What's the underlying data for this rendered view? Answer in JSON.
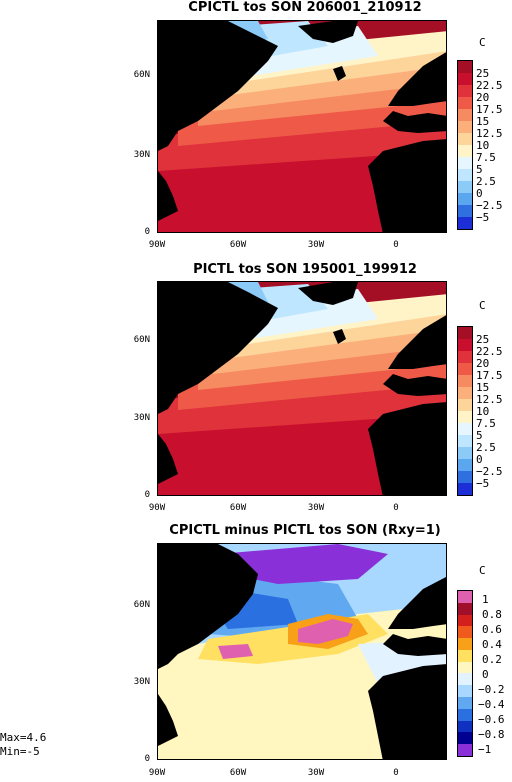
{
  "panels": [
    {
      "title": "CPICTL tos SON 206001_210912",
      "unit": "C"
    },
    {
      "title": "PICTL tos SON 195001_199912",
      "unit": "C"
    },
    {
      "title": "CPICTL minus PICTL tos SON (Rxy=1)",
      "unit": "C"
    }
  ],
  "axes": {
    "y_ticks": [
      "60N",
      "30N",
      "0"
    ],
    "x_ticks": [
      "90W",
      "60W",
      "30W",
      "0"
    ]
  },
  "abs_colorbar": {
    "labels": [
      "25",
      "22.5",
      "20",
      "17.5",
      "15",
      "12.5",
      "10",
      "7.5",
      "5",
      "2.5",
      "0",
      "−2.5",
      "−5"
    ],
    "colors": [
      "#a50f25",
      "#c8102e",
      "#e0323a",
      "#ef5a48",
      "#f68a60",
      "#fbb07c",
      "#fdd49a",
      "#fff3c8",
      "#e6f6ff",
      "#bfe6ff",
      "#8ccaf8",
      "#5aa7f0",
      "#2f6fe0",
      "#1c2fd6"
    ]
  },
  "diff_colorbar": {
    "labels": [
      "1",
      "0.8",
      "0.6",
      "0.4",
      "0.2",
      "0",
      "−0.2",
      "−0.4",
      "−0.6",
      "−0.8",
      "−1"
    ],
    "colors": [
      "#e060b0",
      "#a0102a",
      "#d4201c",
      "#f05a1c",
      "#f8a018",
      "#ffe060",
      "#fff6c0",
      "#e2f2ff",
      "#a8d8ff",
      "#60a8f0",
      "#2a70e0",
      "#1030c0",
      "#000090",
      "#8a30d8"
    ]
  },
  "stats": {
    "max": "Max=4.6",
    "min": "Min=-5"
  }
}
